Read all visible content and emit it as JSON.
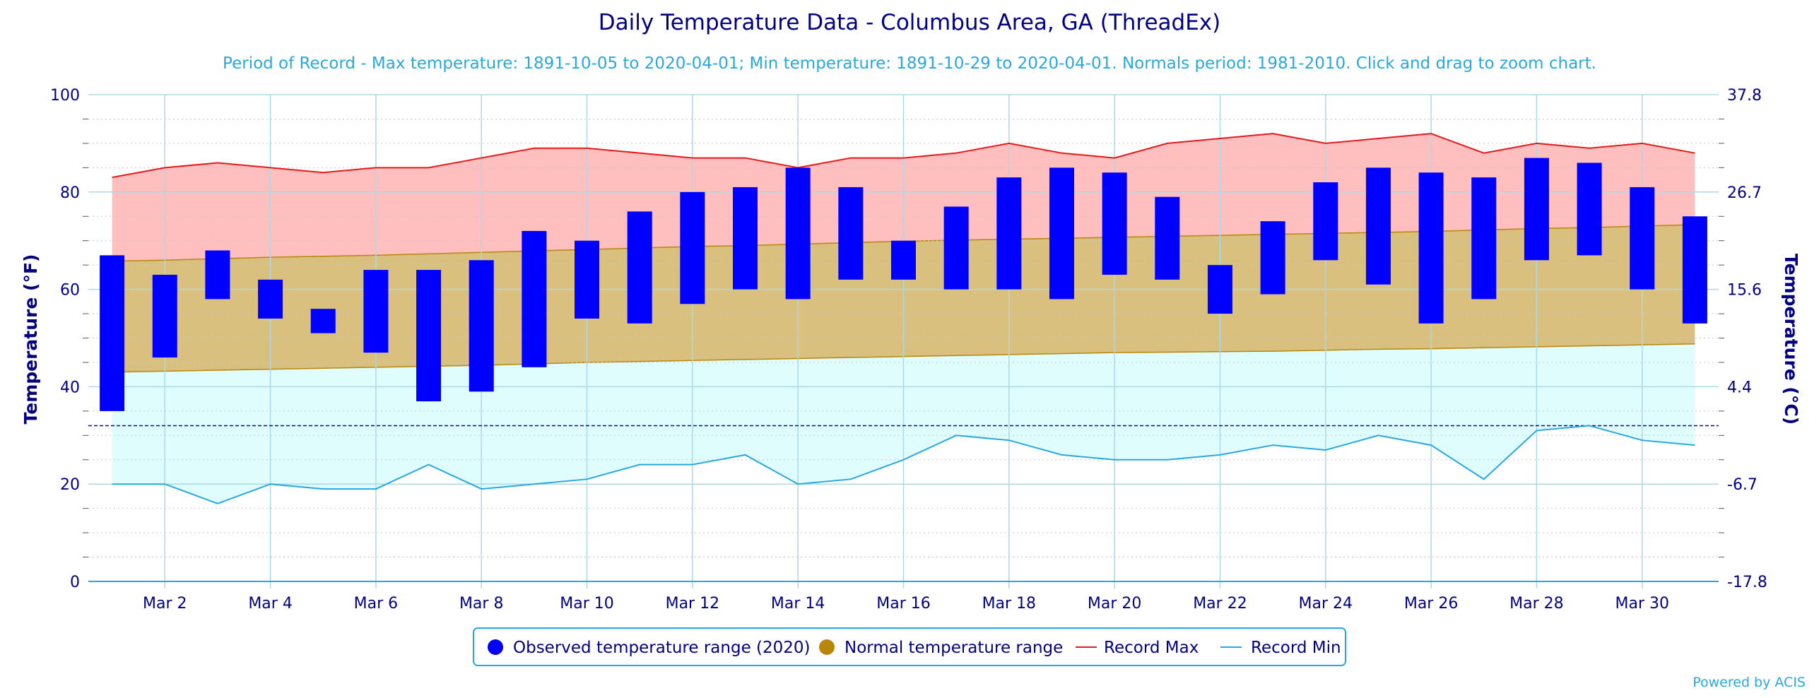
{
  "chart_data": {
    "type": "bar",
    "title": "Daily Temperature Data - Columbus Area, GA (ThreadEx)",
    "subtitle": "Period of Record - Max temperature: 1891-10-05 to 2020-04-01; Min temperature: 1891-10-29 to 2020-04-01. Normals period: 1981-2010. Click and drag to zoom chart.",
    "ylabel": "Temperature (°F)",
    "ylabel_right": "Temperature (°C)",
    "ylim": [
      0,
      100
    ],
    "yticks": [
      0,
      20,
      40,
      60,
      80,
      100
    ],
    "yticks_right": [
      "-17.8",
      "-6.7",
      "4.4",
      "15.6",
      "26.7",
      "37.8"
    ],
    "freeze_line": 32,
    "days": [
      1,
      2,
      3,
      4,
      5,
      6,
      7,
      8,
      9,
      10,
      11,
      12,
      13,
      14,
      15,
      16,
      17,
      18,
      19,
      20,
      21,
      22,
      23,
      24,
      25,
      26,
      27,
      28,
      29,
      30,
      31
    ],
    "xtick_labels": [
      "Mar 2",
      "Mar 4",
      "Mar 6",
      "Mar 8",
      "Mar 10",
      "Mar 12",
      "Mar 14",
      "Mar 16",
      "Mar 18",
      "Mar 20",
      "Mar 22",
      "Mar 24",
      "Mar 26",
      "Mar 28",
      "Mar 30"
    ],
    "xtick_days": [
      2,
      4,
      6,
      8,
      10,
      12,
      14,
      16,
      18,
      20,
      22,
      24,
      26,
      28,
      30
    ],
    "series": [
      {
        "name": "Observed temperature range (2020)",
        "color": "#0000ff",
        "low": [
          35,
          46,
          58,
          54,
          51,
          47,
          37,
          39,
          44,
          54,
          53,
          57,
          60,
          58,
          62,
          62,
          60,
          60,
          58,
          63,
          62,
          55,
          59,
          66,
          61,
          53,
          58,
          66,
          67,
          60,
          53
        ],
        "high": [
          67,
          63,
          68,
          62,
          56,
          64,
          64,
          66,
          72,
          70,
          76,
          80,
          81,
          85,
          81,
          70,
          77,
          83,
          85,
          84,
          79,
          65,
          74,
          82,
          85,
          84,
          83,
          87,
          86,
          81,
          75
        ]
      },
      {
        "name": "Normal temperature range",
        "color": "#b8860b",
        "low": [
          43,
          43.2,
          43.4,
          43.6,
          43.8,
          44,
          44.2,
          44.4,
          44.7,
          45,
          45.2,
          45.4,
          45.6,
          45.8,
          46,
          46.2,
          46.4,
          46.6,
          46.8,
          47,
          47.1,
          47.2,
          47.3,
          47.5,
          47.7,
          47.8,
          48,
          48.2,
          48.4,
          48.6,
          48.8
        ],
        "high": [
          65.8,
          66,
          66.3,
          66.6,
          66.8,
          67,
          67.3,
          67.6,
          67.9,
          68.2,
          68.5,
          68.8,
          69,
          69.3,
          69.6,
          69.9,
          70.1,
          70.3,
          70.5,
          70.7,
          70.9,
          71.1,
          71.3,
          71.5,
          71.7,
          71.9,
          72.2,
          72.5,
          72.7,
          73,
          73.3
        ]
      },
      {
        "name": "Record Max",
        "color": "#e8191b",
        "values": [
          83,
          85,
          86,
          85,
          84,
          85,
          85,
          87,
          89,
          89,
          88,
          87,
          87,
          85,
          87,
          87,
          88,
          90,
          88,
          87,
          90,
          91,
          92,
          90,
          91,
          92,
          88,
          90,
          89,
          90,
          88
        ]
      },
      {
        "name": "Record Min",
        "color": "#29a8e0",
        "values": [
          20,
          20,
          16,
          20,
          19,
          19,
          24,
          19,
          20,
          21,
          24,
          24,
          26,
          20,
          21,
          25,
          30,
          29,
          26,
          25,
          25,
          26,
          28,
          27,
          30,
          28,
          21,
          31,
          32,
          29,
          28
        ]
      }
    ],
    "legend_position": "bottom",
    "grid": true
  },
  "footer": {
    "credit": "Powered by ACIS"
  },
  "colors": {
    "title": "#000080",
    "subtitle": "#29a8e0",
    "record_band": "#ffbfbf",
    "normal_band": "#d9c07f",
    "below_normal_band": "#e0fdfd",
    "gridline": "#add8e6"
  }
}
